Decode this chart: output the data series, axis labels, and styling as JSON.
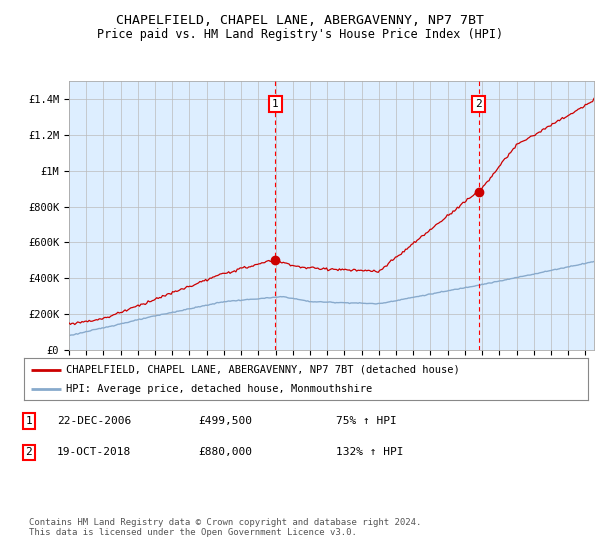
{
  "title": "CHAPELFIELD, CHAPEL LANE, ABERGAVENNY, NP7 7BT",
  "subtitle": "Price paid vs. HM Land Registry's House Price Index (HPI)",
  "ylabel_ticks": [
    "£0",
    "£200K",
    "£400K",
    "£600K",
    "£800K",
    "£1M",
    "£1.2M",
    "£1.4M"
  ],
  "ylim": [
    0,
    1500000
  ],
  "xlim_start": 1995.0,
  "xlim_end": 2025.5,
  "marker1_x": 2006.97,
  "marker1_y": 499500,
  "marker2_x": 2018.8,
  "marker2_y": 880000,
  "red_line_color": "#cc0000",
  "blue_line_color": "#88aacc",
  "shade_color": "#ddeeff",
  "plot_bg_color": "#ddeeff",
  "fig_bg_color": "#ffffff",
  "grid_color": "#bbbbbb",
  "legend_red_label": "CHAPELFIELD, CHAPEL LANE, ABERGAVENNY, NP7 7BT (detached house)",
  "legend_blue_label": "HPI: Average price, detached house, Monmouthshire",
  "annotation1_date": "22-DEC-2006",
  "annotation1_price": "£499,500",
  "annotation1_hpi": "75% ↑ HPI",
  "annotation2_date": "19-OCT-2018",
  "annotation2_price": "£880,000",
  "annotation2_hpi": "132% ↑ HPI",
  "footer": "Contains HM Land Registry data © Crown copyright and database right 2024.\nThis data is licensed under the Open Government Licence v3.0.",
  "title_fontsize": 9.5,
  "subtitle_fontsize": 8.5,
  "tick_fontsize": 7.5,
  "legend_fontsize": 7.5,
  "annotation_fontsize": 8
}
